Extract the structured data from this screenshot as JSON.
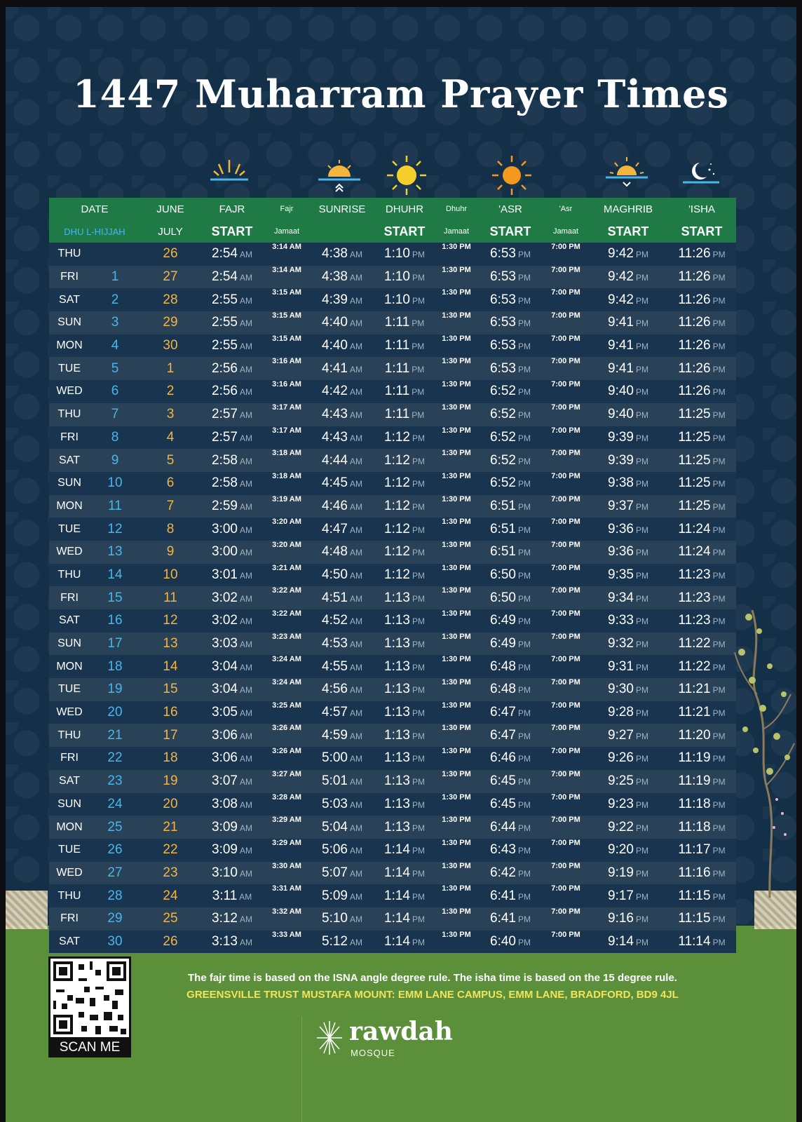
{
  "title": "1447 Muharram Prayer Times",
  "colors": {
    "background": "#143049",
    "header_green": "#1f7a45",
    "hijri_blue": "#49b6ea",
    "gregorian_gold": "#f5b53d",
    "footer_green": "#5c8f3a",
    "address_yellow": "#f2e35c"
  },
  "icons": [
    "sunrise-rays-icon",
    "sunrise-icon",
    "sun-full-icon",
    "sun-orange-icon",
    "sunset-icon",
    "crescent-stars-icon"
  ],
  "header": {
    "row1": [
      "DATE",
      "JUNE",
      "FAJR",
      "Fajr",
      "SUNRISE",
      "DHUHR",
      "Dhuhr",
      "'ASR",
      "'Asr",
      "MAGHRIB",
      "'ISHA"
    ],
    "row2": [
      "DHU L-HIJJAH",
      "JULY",
      "START",
      "Jamaat",
      "START",
      "Jamaat",
      "START",
      "Jamaat",
      "START",
      "START"
    ]
  },
  "am": "AM",
  "pm": "PM",
  "rows": [
    {
      "day": "THU",
      "hijri": "",
      "greg": "26",
      "fajr": "2:54",
      "fajr_j": "3:14 AM",
      "sunrise": "4:38",
      "dhuhr": "1:10",
      "dhuhr_j": "1:30 PM",
      "asr": "6:53",
      "asr_j": "7:00 PM",
      "maghrib": "9:42",
      "isha": "11:26"
    },
    {
      "day": "FRI",
      "hijri": "1",
      "greg": "27",
      "fajr": "2:54",
      "fajr_j": "3:14 AM",
      "sunrise": "4:38",
      "dhuhr": "1:10",
      "dhuhr_j": "1:30 PM",
      "asr": "6:53",
      "asr_j": "7:00 PM",
      "maghrib": "9:42",
      "isha": "11:26"
    },
    {
      "day": "SAT",
      "hijri": "2",
      "greg": "28",
      "fajr": "2:55",
      "fajr_j": "3:15 AM",
      "sunrise": "4:39",
      "dhuhr": "1:10",
      "dhuhr_j": "1:30 PM",
      "asr": "6:53",
      "asr_j": "7:00 PM",
      "maghrib": "9:42",
      "isha": "11:26"
    },
    {
      "day": "SUN",
      "hijri": "3",
      "greg": "29",
      "fajr": "2:55",
      "fajr_j": "3:15 AM",
      "sunrise": "4:40",
      "dhuhr": "1:11",
      "dhuhr_j": "1:30 PM",
      "asr": "6:53",
      "asr_j": "7:00 PM",
      "maghrib": "9:41",
      "isha": "11:26"
    },
    {
      "day": "MON",
      "hijri": "4",
      "greg": "30",
      "fajr": "2:55",
      "fajr_j": "3:15 AM",
      "sunrise": "4:40",
      "dhuhr": "1:11",
      "dhuhr_j": "1:30 PM",
      "asr": "6:53",
      "asr_j": "7:00 PM",
      "maghrib": "9:41",
      "isha": "11:26"
    },
    {
      "day": "TUE",
      "hijri": "5",
      "greg": "1",
      "fajr": "2:56",
      "fajr_j": "3:16 AM",
      "sunrise": "4:41",
      "dhuhr": "1:11",
      "dhuhr_j": "1:30 PM",
      "asr": "6:53",
      "asr_j": "7:00 PM",
      "maghrib": "9:41",
      "isha": "11:26"
    },
    {
      "day": "WED",
      "hijri": "6",
      "greg": "2",
      "fajr": "2:56",
      "fajr_j": "3:16 AM",
      "sunrise": "4:42",
      "dhuhr": "1:11",
      "dhuhr_j": "1:30 PM",
      "asr": "6:52",
      "asr_j": "7:00 PM",
      "maghrib": "9:40",
      "isha": "11:26"
    },
    {
      "day": "THU",
      "hijri": "7",
      "greg": "3",
      "fajr": "2:57",
      "fajr_j": "3:17 AM",
      "sunrise": "4:43",
      "dhuhr": "1:11",
      "dhuhr_j": "1:30 PM",
      "asr": "6:52",
      "asr_j": "7:00 PM",
      "maghrib": "9:40",
      "isha": "11:25"
    },
    {
      "day": "FRI",
      "hijri": "8",
      "greg": "4",
      "fajr": "2:57",
      "fajr_j": "3:17 AM",
      "sunrise": "4:43",
      "dhuhr": "1:12",
      "dhuhr_j": "1:30 PM",
      "asr": "6:52",
      "asr_j": "7:00 PM",
      "maghrib": "9:39",
      "isha": "11:25"
    },
    {
      "day": "SAT",
      "hijri": "9",
      "greg": "5",
      "fajr": "2:58",
      "fajr_j": "3:18 AM",
      "sunrise": "4:44",
      "dhuhr": "1:12",
      "dhuhr_j": "1:30 PM",
      "asr": "6:52",
      "asr_j": "7:00 PM",
      "maghrib": "9:39",
      "isha": "11:25"
    },
    {
      "day": "SUN",
      "hijri": "10",
      "greg": "6",
      "fajr": "2:58",
      "fajr_j": "3:18 AM",
      "sunrise": "4:45",
      "dhuhr": "1:12",
      "dhuhr_j": "1:30 PM",
      "asr": "6:52",
      "asr_j": "7:00 PM",
      "maghrib": "9:38",
      "isha": "11:25"
    },
    {
      "day": "MON",
      "hijri": "11",
      "greg": "7",
      "fajr": "2:59",
      "fajr_j": "3:19 AM",
      "sunrise": "4:46",
      "dhuhr": "1:12",
      "dhuhr_j": "1:30 PM",
      "asr": "6:51",
      "asr_j": "7:00 PM",
      "maghrib": "9:37",
      "isha": "11:25"
    },
    {
      "day": "TUE",
      "hijri": "12",
      "greg": "8",
      "fajr": "3:00",
      "fajr_j": "3:20 AM",
      "sunrise": "4:47",
      "dhuhr": "1:12",
      "dhuhr_j": "1:30 PM",
      "asr": "6:51",
      "asr_j": "7:00 PM",
      "maghrib": "9:36",
      "isha": "11:24"
    },
    {
      "day": "WED",
      "hijri": "13",
      "greg": "9",
      "fajr": "3:00",
      "fajr_j": "3:20 AM",
      "sunrise": "4:48",
      "dhuhr": "1:12",
      "dhuhr_j": "1:30 PM",
      "asr": "6:51",
      "asr_j": "7:00 PM",
      "maghrib": "9:36",
      "isha": "11:24"
    },
    {
      "day": "THU",
      "hijri": "14",
      "greg": "10",
      "fajr": "3:01",
      "fajr_j": "3:21 AM",
      "sunrise": "4:50",
      "dhuhr": "1:12",
      "dhuhr_j": "1:30 PM",
      "asr": "6:50",
      "asr_j": "7:00 PM",
      "maghrib": "9:35",
      "isha": "11:23"
    },
    {
      "day": "FRI",
      "hijri": "15",
      "greg": "11",
      "fajr": "3:02",
      "fajr_j": "3:22 AM",
      "sunrise": "4:51",
      "dhuhr": "1:13",
      "dhuhr_j": "1:30 PM",
      "asr": "6:50",
      "asr_j": "7:00 PM",
      "maghrib": "9:34",
      "isha": "11:23"
    },
    {
      "day": "SAT",
      "hijri": "16",
      "greg": "12",
      "fajr": "3:02",
      "fajr_j": "3:22 AM",
      "sunrise": "4:52",
      "dhuhr": "1:13",
      "dhuhr_j": "1:30 PM",
      "asr": "6:49",
      "asr_j": "7:00 PM",
      "maghrib": "9:33",
      "isha": "11:23"
    },
    {
      "day": "SUN",
      "hijri": "17",
      "greg": "13",
      "fajr": "3:03",
      "fajr_j": "3:23 AM",
      "sunrise": "4:53",
      "dhuhr": "1:13",
      "dhuhr_j": "1:30 PM",
      "asr": "6:49",
      "asr_j": "7:00 PM",
      "maghrib": "9:32",
      "isha": "11:22"
    },
    {
      "day": "MON",
      "hijri": "18",
      "greg": "14",
      "fajr": "3:04",
      "fajr_j": "3:24 AM",
      "sunrise": "4:55",
      "dhuhr": "1:13",
      "dhuhr_j": "1:30 PM",
      "asr": "6:48",
      "asr_j": "7:00 PM",
      "maghrib": "9:31",
      "isha": "11:22"
    },
    {
      "day": "TUE",
      "hijri": "19",
      "greg": "15",
      "fajr": "3:04",
      "fajr_j": "3:24 AM",
      "sunrise": "4:56",
      "dhuhr": "1:13",
      "dhuhr_j": "1:30 PM",
      "asr": "6:48",
      "asr_j": "7:00 PM",
      "maghrib": "9:30",
      "isha": "11:21"
    },
    {
      "day": "WED",
      "hijri": "20",
      "greg": "16",
      "fajr": "3:05",
      "fajr_j": "3:25 AM",
      "sunrise": "4:57",
      "dhuhr": "1:13",
      "dhuhr_j": "1:30 PM",
      "asr": "6:47",
      "asr_j": "7:00 PM",
      "maghrib": "9:28",
      "isha": "11:21"
    },
    {
      "day": "THU",
      "hijri": "21",
      "greg": "17",
      "fajr": "3:06",
      "fajr_j": "3:26 AM",
      "sunrise": "4:59",
      "dhuhr": "1:13",
      "dhuhr_j": "1:30 PM",
      "asr": "6:47",
      "asr_j": "7:00 PM",
      "maghrib": "9:27",
      "isha": "11:20"
    },
    {
      "day": "FRI",
      "hijri": "22",
      "greg": "18",
      "fajr": "3:06",
      "fajr_j": "3:26 AM",
      "sunrise": "5:00",
      "dhuhr": "1:13",
      "dhuhr_j": "1:30 PM",
      "asr": "6:46",
      "asr_j": "7:00 PM",
      "maghrib": "9:26",
      "isha": "11:19"
    },
    {
      "day": "SAT",
      "hijri": "23",
      "greg": "19",
      "fajr": "3:07",
      "fajr_j": "3:27 AM",
      "sunrise": "5:01",
      "dhuhr": "1:13",
      "dhuhr_j": "1:30 PM",
      "asr": "6:45",
      "asr_j": "7:00 PM",
      "maghrib": "9:25",
      "isha": "11:19"
    },
    {
      "day": "SUN",
      "hijri": "24",
      "greg": "20",
      "fajr": "3:08",
      "fajr_j": "3:28 AM",
      "sunrise": "5:03",
      "dhuhr": "1:13",
      "dhuhr_j": "1:30 PM",
      "asr": "6:45",
      "asr_j": "7:00 PM",
      "maghrib": "9:23",
      "isha": "11:18"
    },
    {
      "day": "MON",
      "hijri": "25",
      "greg": "21",
      "fajr": "3:09",
      "fajr_j": "3:29 AM",
      "sunrise": "5:04",
      "dhuhr": "1:13",
      "dhuhr_j": "1:30 PM",
      "asr": "6:44",
      "asr_j": "7:00 PM",
      "maghrib": "9:22",
      "isha": "11:18"
    },
    {
      "day": "TUE",
      "hijri": "26",
      "greg": "22",
      "fajr": "3:09",
      "fajr_j": "3:29 AM",
      "sunrise": "5:06",
      "dhuhr": "1:14",
      "dhuhr_j": "1:30 PM",
      "asr": "6:43",
      "asr_j": "7:00 PM",
      "maghrib": "9:20",
      "isha": "11:17"
    },
    {
      "day": "WED",
      "hijri": "27",
      "greg": "23",
      "fajr": "3:10",
      "fajr_j": "3:30 AM",
      "sunrise": "5:07",
      "dhuhr": "1:14",
      "dhuhr_j": "1:30 PM",
      "asr": "6:42",
      "asr_j": "7:00 PM",
      "maghrib": "9:19",
      "isha": "11:16"
    },
    {
      "day": "THU",
      "hijri": "28",
      "greg": "24",
      "fajr": "3:11",
      "fajr_j": "3:31 AM",
      "sunrise": "5:09",
      "dhuhr": "1:14",
      "dhuhr_j": "1:30 PM",
      "asr": "6:41",
      "asr_j": "7:00 PM",
      "maghrib": "9:17",
      "isha": "11:15"
    },
    {
      "day": "FRI",
      "hijri": "29",
      "greg": "25",
      "fajr": "3:12",
      "fajr_j": "3:32 AM",
      "sunrise": "5:10",
      "dhuhr": "1:14",
      "dhuhr_j": "1:30 PM",
      "asr": "6:41",
      "asr_j": "7:00 PM",
      "maghrib": "9:16",
      "isha": "11:15"
    },
    {
      "day": "SAT",
      "hijri": "30",
      "greg": "26",
      "fajr": "3:13",
      "fajr_j": "3:33 AM",
      "sunrise": "5:12",
      "dhuhr": "1:14",
      "dhuhr_j": "1:30 PM",
      "asr": "6:40",
      "asr_j": "7:00 PM",
      "maghrib": "9:14",
      "isha": "11:14"
    }
  ],
  "qr_label": "SCAN ME",
  "note_line1": "The fajr time is based on the ISNA angle degree rule. The isha time is based on the 15 degree rule.",
  "note_line2": "GREENSVILLE TRUST MUSTAFA MOUNT: EMM LANE CAMPUS, EMM LANE, BRADFORD, BD9 4JL",
  "logo": {
    "name": "rawdah",
    "sub": "MOSQUE"
  }
}
